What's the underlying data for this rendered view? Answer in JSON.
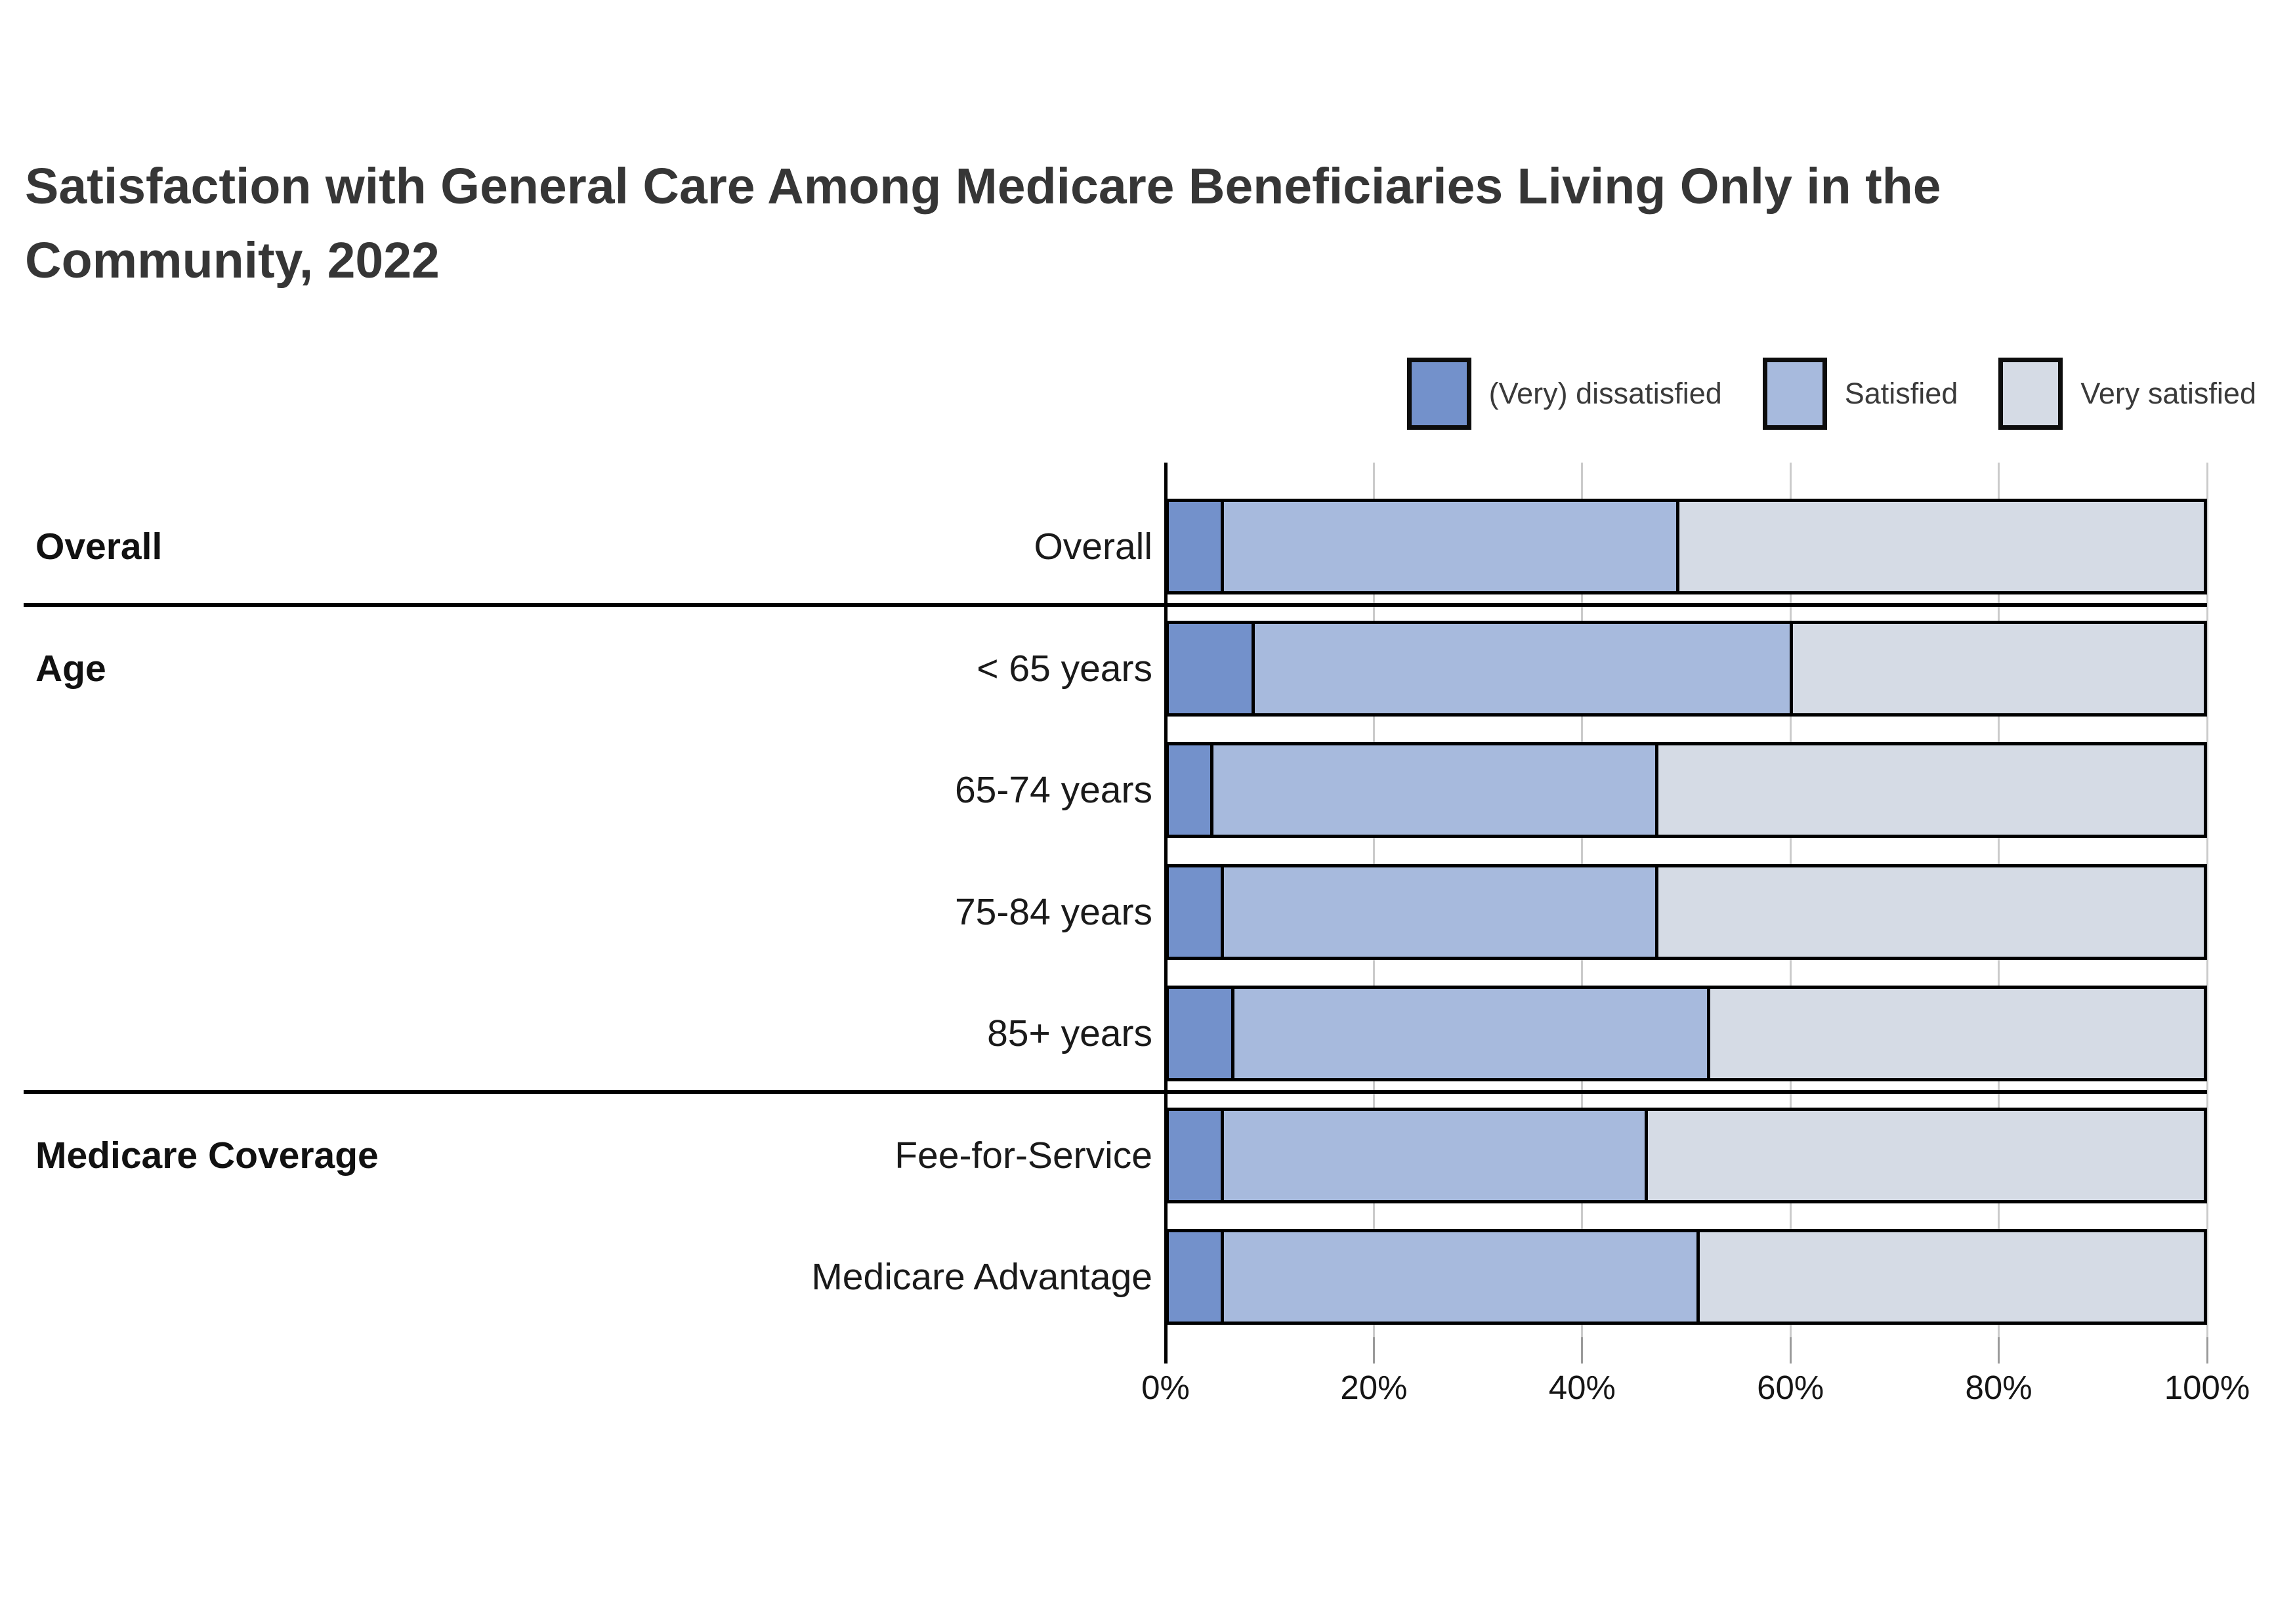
{
  "title": {
    "lines": [
      "Satisfaction with General Care Among Medicare Beneficiaries Living Only in the",
      "Community, 2022"
    ]
  },
  "legend": {
    "items": [
      {
        "label": "(Very) dissatisfied",
        "color": "#7391cb"
      },
      {
        "label": "Satisfied",
        "color": "#a7badd"
      },
      {
        "label": "Very satisfied",
        "color": "#d5dbe5"
      }
    ]
  },
  "chart_data": {
    "type": "bar",
    "subtype": "horizontal_stacked_percent",
    "title": "Satisfaction with General Care Among Medicare Beneficiaries Living Only in the Community, 2022",
    "series": [
      {
        "name": "(Very) dissatisfied",
        "color": "#7391cb"
      },
      {
        "name": "Satisfied",
        "color": "#a7badd"
      },
      {
        "name": "Very satisfied",
        "color": "#d5dbe5"
      }
    ],
    "groups": [
      {
        "section": "Overall",
        "rows": [
          {
            "label": "Overall",
            "values": [
              5,
              44,
              51
            ]
          }
        ]
      },
      {
        "section": "Age",
        "rows": [
          {
            "label": "< 65 years",
            "values": [
              8,
              52,
              40
            ]
          },
          {
            "label": "65-74 years",
            "values": [
              4,
              43,
              53
            ]
          },
          {
            "label": "75-84 years",
            "values": [
              5,
              42,
              53
            ]
          },
          {
            "label": "85+ years",
            "values": [
              6,
              46,
              48
            ]
          }
        ]
      },
      {
        "section": "Medicare Coverage",
        "rows": [
          {
            "label": "Fee-for-Service",
            "values": [
              5,
              41,
              54
            ]
          },
          {
            "label": "Medicare Advantage",
            "values": [
              5,
              46,
              49
            ]
          }
        ]
      }
    ],
    "x_axis": {
      "min": 0,
      "max": 100,
      "tick_labels": [
        "0%",
        "20%",
        "40%",
        "60%",
        "80%",
        "100%"
      ],
      "grid": true
    },
    "legend_position": "top-right",
    "colors": {
      "grid": "#cbcbcb",
      "bar_border": "#000000",
      "section_divider": "#000000"
    }
  }
}
